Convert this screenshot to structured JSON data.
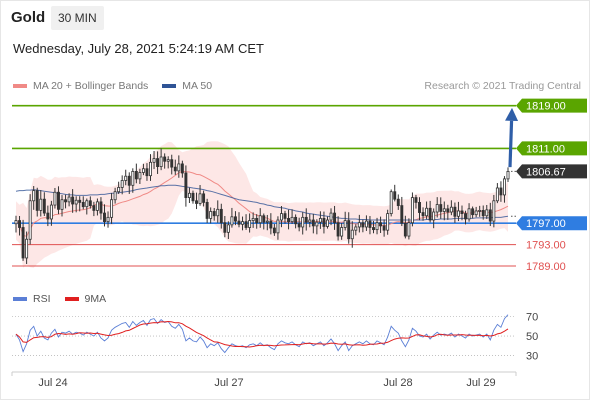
{
  "header": {
    "instrument": "Gold",
    "timeframe": "30 MIN",
    "datetime": "Wednesday, July 28, 2021 5:24:19 AM CET",
    "copyright": "Research © 2021 Trading Central"
  },
  "legend": {
    "ma20": "MA 20 + Bollinger Bands",
    "ma50": "MA 50",
    "ma20_color": "#f08a86",
    "ma50_color": "#2f5496"
  },
  "rsi_legend": {
    "rsi": "RSI",
    "ma9": "9MA",
    "rsi_color": "#5b7fd6",
    "ma9_color": "#e02020"
  },
  "chart_data": [
    {
      "type": "candlestick",
      "ylim": [
        1786,
        1821
      ],
      "x_ticks": [
        "Jul 24",
        "Jul 27",
        "Jul 28",
        "Jul 29"
      ],
      "last_price": "1806.67",
      "levels": [
        {
          "label": "1819.00",
          "value": 1819.0,
          "kind": "resistance",
          "color": "#5aa500"
        },
        {
          "label": "1811.00",
          "value": 1811.0,
          "kind": "resistance",
          "color": "#5aa500"
        },
        {
          "label": "1797.00",
          "value": 1797.0,
          "kind": "pivot",
          "color": "#2f7de1"
        },
        {
          "label": "1793.00",
          "value": 1793.0,
          "kind": "support",
          "color": "#e05050"
        },
        {
          "label": "1789.00",
          "value": 1789.0,
          "kind": "support",
          "color": "#e05050"
        }
      ],
      "target_arrow": {
        "from": 1807.5,
        "to": 1818.6,
        "color": "#2f5ea8"
      },
      "closes": [
        1797.5,
        1796.2,
        1790.5,
        1794.0,
        1801.2,
        1803.1,
        1799.4,
        1801.5,
        1798.9,
        1797.8,
        1800.4,
        1802.8,
        1799.6,
        1801.4,
        1801.0,
        1801.9,
        1800.6,
        1801.3,
        1800.9,
        1800.1,
        1801.2,
        1800.3,
        1799.4,
        1801.0,
        1798.9,
        1797.3,
        1798.1,
        1801.4,
        1802.9,
        1803.7,
        1805.0,
        1805.8,
        1804.1,
        1806.7,
        1805.3,
        1806.5,
        1807.2,
        1805.9,
        1808.4,
        1809.1,
        1807.6,
        1809.4,
        1808.6,
        1808.9,
        1807.5,
        1806.8,
        1808.1,
        1806.4,
        1801.8,
        1802.6,
        1801.2,
        1800.7,
        1802.5,
        1800.9,
        1797.9,
        1799.2,
        1798.4,
        1799.6,
        1797.1,
        1795.3,
        1796.7,
        1798.2,
        1797.4,
        1796.8,
        1797.3,
        1796.2,
        1797.5,
        1797.9,
        1797.1,
        1798.4,
        1797.2,
        1797.4,
        1796.1,
        1795.2,
        1797.6,
        1798.8,
        1797.9,
        1797.3,
        1798.1,
        1796.9,
        1796.3,
        1798.1,
        1797.2,
        1797.6,
        1796.5,
        1797.2,
        1797.9,
        1796.4,
        1797.6,
        1798.9,
        1797.1,
        1794.6,
        1796.2,
        1797.5,
        1794.1,
        1795.7,
        1796.3,
        1797.1,
        1796.3,
        1797.4,
        1796.2,
        1795.8,
        1797.1,
        1796.5,
        1795.7,
        1798.8,
        1802.9,
        1801.5,
        1800.3,
        1797.0,
        1794.6,
        1797.1,
        1801.8,
        1800.9,
        1799.0,
        1798.4,
        1799.8,
        1797.6,
        1799.1,
        1800.5,
        1799.2,
        1799.7,
        1799.1,
        1800.0,
        1798.3,
        1799.3,
        1798.8,
        1797.8,
        1799.7,
        1798.6,
        1799.3,
        1799.4,
        1798.4,
        1799.5,
        1797.4,
        1801.2,
        1803.6,
        1802.3,
        1805.3,
        1806.7
      ],
      "ma50": [
        1803.0,
        1803.1,
        1803.1,
        1803.2,
        1803.2,
        1803.3,
        1803.2,
        1803.1,
        1803.0,
        1802.9,
        1802.8,
        1802.7,
        1802.6,
        1802.5,
        1802.4,
        1802.3,
        1802.3,
        1802.2,
        1802.2,
        1802.2,
        1802.2,
        1802.3,
        1802.3,
        1802.3,
        1802.4,
        1802.4,
        1802.5,
        1802.6,
        1802.6,
        1802.7,
        1802.8,
        1802.9,
        1803.0,
        1803.1,
        1803.3,
        1803.4,
        1803.5,
        1803.6,
        1803.7,
        1803.8,
        1803.9,
        1804.0,
        1804.0,
        1804.1,
        1804.1,
        1804.1,
        1804.0,
        1803.9,
        1803.8,
        1803.7,
        1803.6,
        1803.5,
        1803.4,
        1803.3,
        1803.1,
        1803.0,
        1802.8,
        1802.6,
        1802.4,
        1802.2,
        1802.0,
        1801.8,
        1801.6,
        1801.4,
        1801.3,
        1801.2,
        1801.1,
        1801.0,
        1800.9,
        1800.7,
        1800.6,
        1800.4,
        1800.3,
        1800.1,
        1800.0,
        1799.9,
        1799.8,
        1799.6,
        1799.5,
        1799.3,
        1799.2,
        1799.1,
        1798.9,
        1798.8,
        1798.7,
        1798.6,
        1798.5,
        1798.4,
        1798.3,
        1798.2,
        1798.1,
        1798.0,
        1797.9,
        1797.9,
        1797.8,
        1797.8,
        1797.8,
        1797.7,
        1797.7,
        1797.7,
        1797.6,
        1797.6,
        1797.6,
        1797.6,
        1797.6,
        1797.6,
        1797.6,
        1797.6,
        1797.6,
        1797.6,
        1797.6,
        1797.6,
        1797.6,
        1797.6,
        1797.6,
        1797.6,
        1797.7,
        1797.7,
        1797.7,
        1797.7,
        1797.8,
        1797.8,
        1797.8,
        1797.8,
        1797.9,
        1797.9,
        1797.9,
        1797.9,
        1797.9,
        1797.9,
        1798.0,
        1798.0,
        1798.0,
        1798.0,
        1798.0,
        1798.1,
        1798.1,
        1798.1,
        1798.2,
        1798.3
      ],
      "rsi_ylim": [
        15,
        82
      ],
      "rsi_ticks": [
        70,
        50,
        30
      ],
      "rsi": [
        52,
        46,
        34,
        42,
        56,
        60,
        50,
        55,
        48,
        46,
        53,
        57,
        49,
        54,
        53,
        55,
        52,
        54,
        53,
        51,
        54,
        52,
        50,
        54,
        48,
        45,
        48,
        56,
        59,
        61,
        63,
        64,
        59,
        65,
        61,
        64,
        66,
        61,
        67,
        68,
        63,
        67,
        64,
        65,
        60,
        58,
        62,
        57,
        45,
        48,
        45,
        44,
        49,
        45,
        38,
        42,
        40,
        43,
        37,
        33,
        38,
        42,
        40,
        39,
        40,
        38,
        41,
        42,
        40,
        43,
        40,
        41,
        38,
        36,
        42,
        45,
        43,
        42,
        44,
        41,
        39,
        44,
        42,
        43,
        40,
        42,
        44,
        40,
        43,
        47,
        42,
        35,
        40,
        44,
        35,
        40,
        42,
        44,
        42,
        45,
        42,
        41,
        45,
        43,
        41,
        49,
        60,
        56,
        53,
        45,
        39,
        46,
        58,
        55,
        50,
        49,
        52,
        47,
        51,
        54,
        51,
        52,
        51,
        53,
        49,
        52,
        50,
        48,
        52,
        50,
        51,
        52,
        49,
        52,
        46,
        56,
        62,
        59,
        68,
        72
      ]
    }
  ]
}
